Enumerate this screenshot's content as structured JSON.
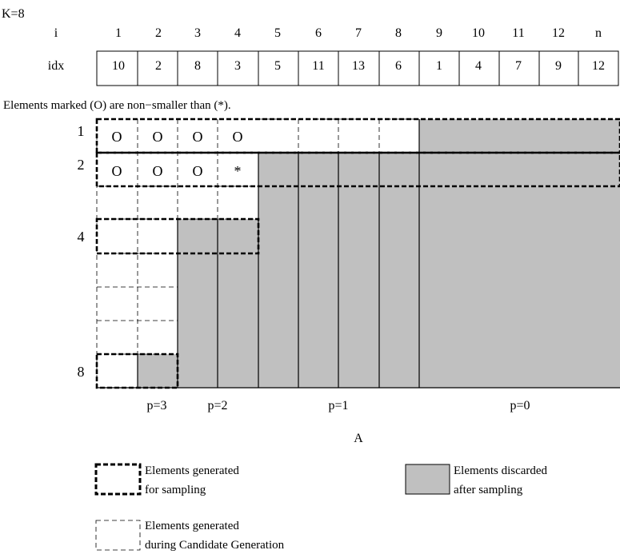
{
  "k_label": "K=8",
  "header": {
    "i_label": "i",
    "idx_label": "idx",
    "i_values": [
      "1",
      "2",
      "3",
      "4",
      "5",
      "6",
      "7",
      "8",
      "9",
      "10",
      "11",
      "12",
      "n"
    ],
    "idx_values": [
      "10",
      "2",
      "8",
      "3",
      "5",
      "11",
      "13",
      "6",
      "1",
      "4",
      "7",
      "9",
      "12"
    ]
  },
  "caption": "Elements marked (O) are non−smaller than (*).",
  "grid": {
    "row_labels": [
      "1",
      "2",
      "4",
      "8"
    ],
    "row1_marks": [
      "O",
      "O",
      "O",
      "O"
    ],
    "row2_marks": [
      "O",
      "O",
      "O",
      "*"
    ]
  },
  "partitions": [
    "p=3",
    "p=2",
    "p=1",
    "p=0"
  ],
  "figure_label": "A",
  "legend": {
    "sampling": [
      "Elements generated",
      "for sampling"
    ],
    "discarded": [
      "Elements discarded",
      "after sampling"
    ],
    "candidate": [
      "Elements generated",
      "during Candidate Generation"
    ]
  },
  "colors": {
    "discarded_fill": "#c0c0c0",
    "line": "#000000"
  }
}
